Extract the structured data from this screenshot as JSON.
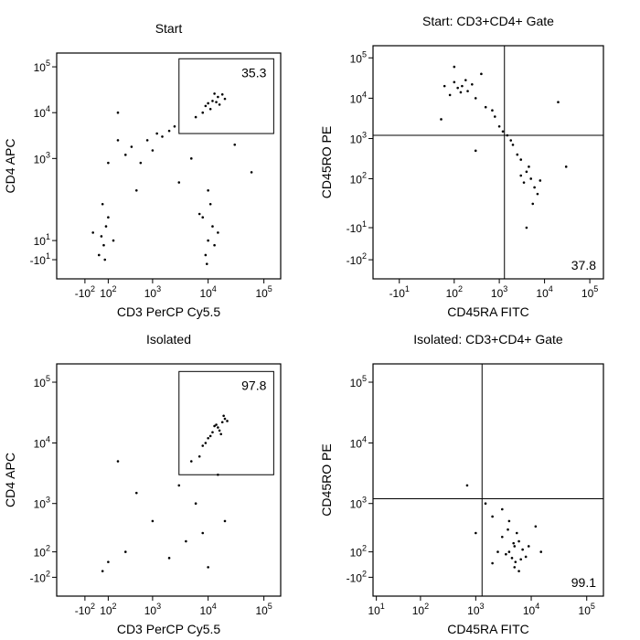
{
  "chart_data": [
    {
      "type": "scatter",
      "title": "Start",
      "xlabel": "CD3 PerCP Cy5.5",
      "ylabel": "CD4 APC",
      "color": "#000000",
      "xlim": [
        -500,
        200000
      ],
      "ylim": [
        -40,
        200000
      ],
      "xticks": [
        {
          "value": -100,
          "label": "-10",
          "exponent": "2"
        },
        {
          "value": 100,
          "label": "10",
          "exponent": "2"
        },
        {
          "value": 1000,
          "label": "10",
          "exponent": "3"
        },
        {
          "value": 10000,
          "label": "10",
          "exponent": "4"
        },
        {
          "value": 100000,
          "label": "10",
          "exponent": "5"
        }
      ],
      "yticks": [
        {
          "value": 100000,
          "label": "10",
          "exponent": "5"
        },
        {
          "value": 10000,
          "label": "10",
          "exponent": "4"
        },
        {
          "value": 1000,
          "label": "10",
          "exponent": "3"
        },
        {
          "value": 10,
          "label": "10",
          "exponent": "1"
        },
        {
          "value": -10,
          "label": "-10",
          "exponent": "1"
        }
      ],
      "gate": {
        "type": "rectangle",
        "x": [
          3000,
          150000
        ],
        "y": [
          3500,
          150000
        ],
        "percent": 35.3
      },
      "x": [
        12000,
        15000,
        9000,
        18000,
        11000,
        14000,
        8000,
        20000,
        13000,
        10000,
        6000,
        16000,
        10000,
        12000,
        9000,
        11000,
        8000,
        13000,
        10000,
        15000,
        9500,
        7000,
        40,
        80,
        20,
        100,
        60,
        -30,
        50,
        150,
        70,
        1500,
        800,
        400,
        2000,
        1200,
        300,
        600,
        200,
        1000,
        100,
        2500,
        3000,
        500,
        30000,
        200,
        5000,
        60000
      ],
      "y": [
        18000,
        22000,
        14000,
        25000,
        12000,
        17000,
        10000,
        20000,
        26000,
        16000,
        8000,
        15000,
        10,
        30,
        -5,
        100,
        50,
        5,
        200,
        20,
        -15,
        60,
        15,
        30,
        -5,
        50,
        5,
        20,
        100,
        10,
        -10,
        3000,
        2500,
        1800,
        4000,
        3500,
        1200,
        800,
        2500,
        1500,
        800,
        5000,
        300,
        200,
        2000,
        10000,
        1000,
        500
      ]
    },
    {
      "type": "scatter",
      "title": "Start: CD3+CD4+ Gate",
      "xlabel": "CD45RA FITC",
      "ylabel": "CD45RO PE",
      "color": "#000000",
      "xlim": [
        -60,
        200000
      ],
      "ylim": [
        -300,
        200000
      ],
      "xticks": [
        {
          "value": -10,
          "label": "-10",
          "exponent": "1"
        },
        {
          "value": 100,
          "label": "10",
          "exponent": "2"
        },
        {
          "value": 1000,
          "label": "10",
          "exponent": "3"
        },
        {
          "value": 10000,
          "label": "10",
          "exponent": "4"
        },
        {
          "value": 100000,
          "label": "10",
          "exponent": "5"
        }
      ],
      "yticks": [
        {
          "value": 100000,
          "label": "10",
          "exponent": "5"
        },
        {
          "value": 10000,
          "label": "10",
          "exponent": "4"
        },
        {
          "value": 1000,
          "label": "10",
          "exponent": "3"
        },
        {
          "value": 100,
          "label": "10",
          "exponent": "2"
        },
        {
          "value": -10,
          "label": "-10",
          "exponent": "1"
        },
        {
          "value": -100,
          "label": "-10",
          "exponent": "2"
        }
      ],
      "gate": {
        "type": "quadrant",
        "x": 1300,
        "y": 1200,
        "percent": 37.8
      },
      "x": [
        150,
        100,
        200,
        120,
        180,
        80,
        250,
        140,
        300,
        60,
        500,
        800,
        1000,
        1500,
        2000,
        2500,
        3000,
        700,
        1200,
        1800,
        4000,
        5000,
        6000,
        3500,
        4500,
        7000,
        5500,
        3000,
        8000,
        4000,
        50,
        400,
        20000,
        300,
        30000,
        100
      ],
      "y": [
        20000,
        25000,
        15000,
        18000,
        28000,
        12000,
        22000,
        14000,
        10000,
        20000,
        6000,
        3500,
        2000,
        1200,
        700,
        400,
        300,
        5000,
        1500,
        900,
        150,
        100,
        60,
        80,
        200,
        40,
        20,
        120,
        90,
        -10,
        3000,
        40000,
        8000,
        500,
        200,
        60000
      ]
    },
    {
      "type": "scatter",
      "title": "Isolated",
      "xlabel": "CD3 PerCP Cy5.5",
      "ylabel": "CD4 APC",
      "color": "#000000",
      "xlim": [
        -500,
        200000
      ],
      "ylim": [
        -300,
        200000
      ],
      "xticks": [
        {
          "value": -100,
          "label": "-10",
          "exponent": "2"
        },
        {
          "value": 100,
          "label": "10",
          "exponent": "2"
        },
        {
          "value": 1000,
          "label": "10",
          "exponent": "3"
        },
        {
          "value": 10000,
          "label": "10",
          "exponent": "4"
        },
        {
          "value": 100000,
          "label": "10",
          "exponent": "5"
        }
      ],
      "yticks": [
        {
          "value": 100000,
          "label": "10",
          "exponent": "5"
        },
        {
          "value": 10000,
          "label": "10",
          "exponent": "4"
        },
        {
          "value": 1000,
          "label": "10",
          "exponent": "3"
        },
        {
          "value": 100,
          "label": "10",
          "exponent": "2"
        },
        {
          "value": -100,
          "label": "-10",
          "exponent": "2"
        }
      ],
      "gate": {
        "type": "rectangle",
        "x": [
          3000,
          150000
        ],
        "y": [
          3000,
          150000
        ],
        "percent": 97.8
      },
      "x": [
        15000,
        12000,
        18000,
        10000,
        20000,
        14000,
        11000,
        16000,
        9000,
        22000,
        13000,
        17000,
        8000,
        19000,
        5000,
        3000,
        1000,
        300,
        2000,
        8000,
        500,
        100,
        6000,
        15000,
        4000,
        200,
        10000,
        50,
        20000,
        7000
      ],
      "y": [
        18000,
        15000,
        22000,
        12000,
        25000,
        20000,
        13000,
        16000,
        10000,
        23000,
        19000,
        14000,
        9000,
        28000,
        5000,
        2000,
        500,
        100,
        50,
        300,
        1500,
        20,
        1000,
        3000,
        200,
        5000,
        -20,
        -50,
        500,
        6000
      ]
    },
    {
      "type": "scatter",
      "title": "Isolated: CD3+CD4+ Gate",
      "xlabel": "CD45RA FITC",
      "ylabel": "CD45RO PE",
      "color": "#000000",
      "xlim": [
        7,
        200000
      ],
      "ylim": [
        -300,
        200000
      ],
      "xticks": [
        {
          "value": 10,
          "label": "10",
          "exponent": "1"
        },
        {
          "value": 100,
          "label": "10",
          "exponent": "2"
        },
        {
          "value": 1000,
          "label": "10",
          "exponent": "3"
        },
        {
          "value": 10000,
          "label": "10",
          "exponent": "4"
        },
        {
          "value": 100000,
          "label": "10",
          "exponent": "5"
        }
      ],
      "yticks": [
        {
          "value": 100000,
          "label": "10",
          "exponent": "5"
        },
        {
          "value": 10000,
          "label": "10",
          "exponent": "4"
        },
        {
          "value": 1000,
          "label": "10",
          "exponent": "3"
        },
        {
          "value": 100,
          "label": "10",
          "exponent": "2"
        },
        {
          "value": -100,
          "label": "-10",
          "exponent": "2"
        }
      ],
      "gate": {
        "type": "quadrant",
        "x": 1300,
        "y": 1200,
        "percent": 99.1
      },
      "x": [
        5000,
        4000,
        6000,
        4500,
        5500,
        3500,
        7000,
        3000,
        5000,
        6500,
        4000,
        8000,
        2500,
        4800,
        5200,
        3800,
        6000,
        9000,
        1500,
        2000,
        700,
        1000,
        12000,
        2000,
        3000,
        15000
      ],
      "y": [
        150,
        100,
        200,
        50,
        300,
        80,
        120,
        250,
        -20,
        40,
        500,
        60,
        100,
        180,
        20,
        350,
        -50,
        150,
        1000,
        600,
        2000,
        300,
        400,
        10,
        800,
        100
      ]
    }
  ]
}
